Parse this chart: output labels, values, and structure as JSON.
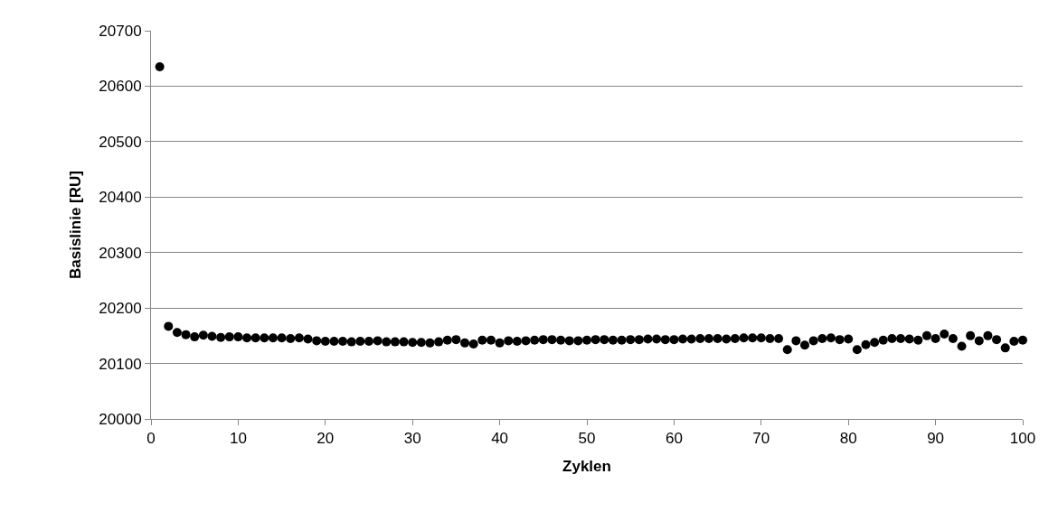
{
  "chart_data": {
    "type": "scatter",
    "xlabel": "Zyklen",
    "ylabel": "Basislinie [RU]",
    "x": [
      1,
      2,
      3,
      4,
      5,
      6,
      7,
      8,
      9,
      10,
      11,
      12,
      13,
      14,
      15,
      16,
      17,
      18,
      19,
      20,
      21,
      22,
      23,
      24,
      25,
      26,
      27,
      28,
      29,
      30,
      31,
      32,
      33,
      34,
      35,
      36,
      37,
      38,
      39,
      40,
      41,
      42,
      43,
      44,
      45,
      46,
      47,
      48,
      49,
      50,
      51,
      52,
      53,
      54,
      55,
      56,
      57,
      58,
      59,
      60,
      61,
      62,
      63,
      64,
      65,
      66,
      67,
      68,
      69,
      70,
      71,
      72,
      73,
      74,
      75,
      76,
      77,
      78,
      79,
      80,
      81,
      82,
      83,
      84,
      85,
      86,
      87,
      88,
      89,
      90,
      91,
      92,
      93,
      94,
      95,
      96,
      97,
      98,
      99,
      100
    ],
    "series": [
      {
        "color": "#000000",
        "values": [
          20635,
          20167,
          20156,
          20152,
          20148,
          20151,
          20149,
          20147,
          20148,
          20148,
          20146,
          20146,
          20146,
          20146,
          20146,
          20145,
          20146,
          20144,
          20141,
          20140,
          20140,
          20140,
          20139,
          20140,
          20140,
          20141,
          20139,
          20139,
          20139,
          20138,
          20138,
          20137,
          20139,
          20142,
          20143,
          20137,
          20135,
          20142,
          20142,
          20137,
          20141,
          20140,
          20141,
          20142,
          20143,
          20143,
          20142,
          20141,
          20141,
          20142,
          20143,
          20143,
          20142,
          20142,
          20143,
          20143,
          20144,
          20144,
          20143,
          20143,
          20144,
          20144,
          20145,
          20145,
          20145,
          20144,
          20145,
          20146,
          20146,
          20146,
          20145,
          20145,
          20125,
          20141,
          20133,
          20141,
          20145,
          20146,
          20143,
          20144,
          20125,
          20134,
          20138,
          20142,
          20145,
          20145,
          20144,
          20142,
          20150,
          20145,
          20153,
          20145,
          20131,
          20150,
          20141,
          20150,
          20143,
          20128,
          20140,
          20142
        ]
      }
    ],
    "xlim": [
      0,
      100
    ],
    "xticks": [
      0,
      10,
      20,
      30,
      40,
      50,
      60,
      70,
      80,
      90,
      100
    ],
    "ylim": [
      20000,
      20700
    ],
    "yticks": [
      20000,
      20100,
      20200,
      20300,
      20400,
      20500,
      20600,
      20700
    ],
    "grid": "y",
    "marker": "circle",
    "legend": false
  }
}
